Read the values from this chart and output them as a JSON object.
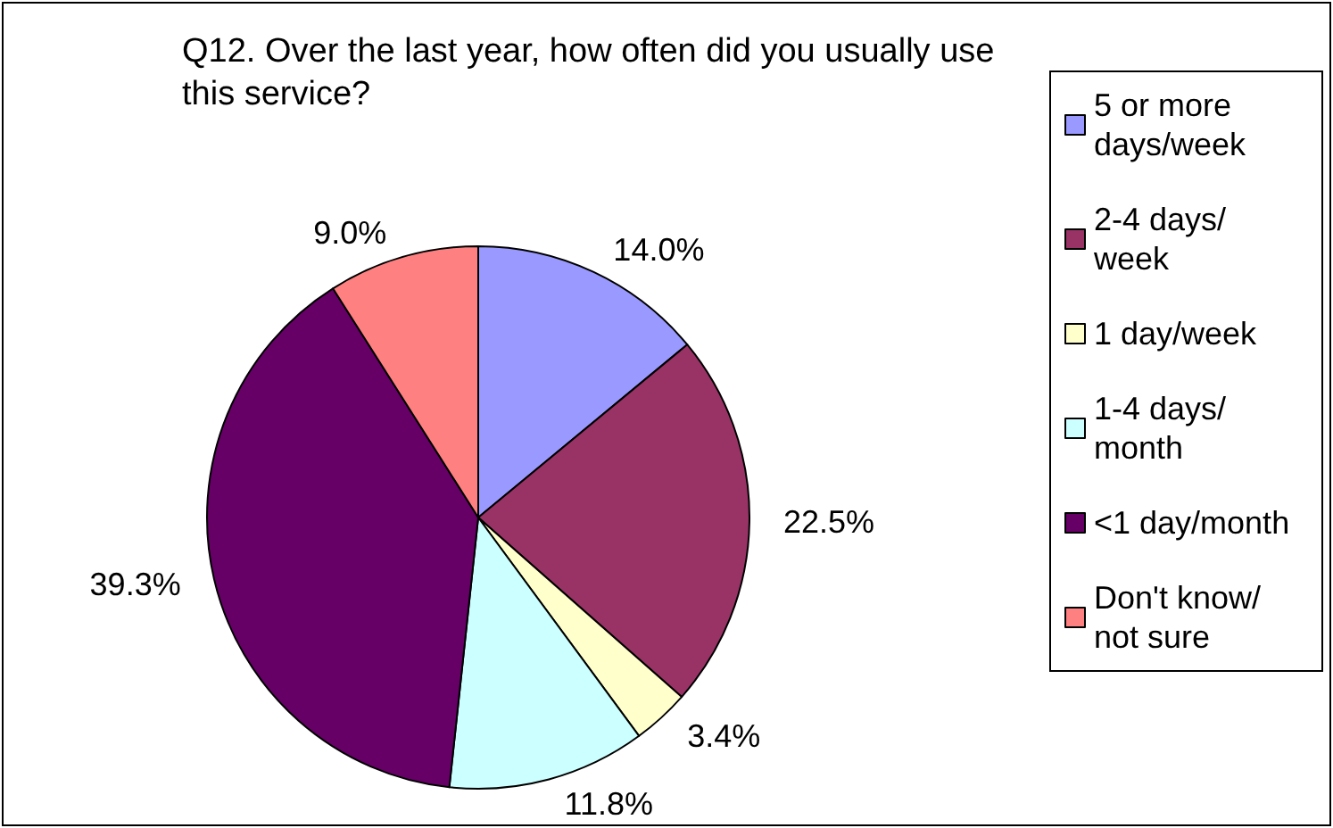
{
  "chart_data": {
    "type": "pie",
    "title": "Q12. Over the last year, how often did you usually use this service?",
    "categories": [
      "5 or more days/week",
      "2-4 days/week",
      "1 day/week",
      "1-4 days/month",
      "<1 day/month",
      "Don't know/not sure"
    ],
    "values": [
      14.0,
      22.5,
      3.4,
      11.8,
      39.3,
      9.0
    ],
    "value_labels": [
      "14.0%",
      "22.5%",
      "3.4%",
      "11.8%",
      "39.3%",
      "9.0%"
    ],
    "colors": [
      "#9999ff",
      "#993366",
      "#ffffcc",
      "#ccffff",
      "#660066",
      "#ff8080"
    ],
    "legend": "right"
  }
}
